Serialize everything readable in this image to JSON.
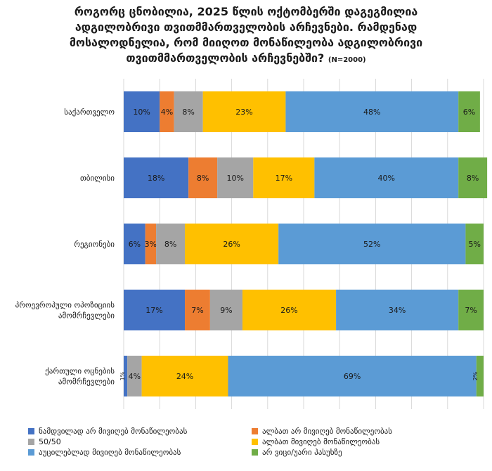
{
  "chart_data": {
    "type": "bar",
    "orientation": "horizontal",
    "stacked": true,
    "title_lines": [
      "როგორც ცნობილია, 2025 წლის ოქტომბერში დაგეგმილია",
      "ადგილობრივი თვითმმართველობის არჩევნები. რამდენად",
      "მოსალოდნელია, რომ მიიღოთ მონაწილეობა ადგილობრივი",
      "თვითმმართველობის არჩევნებში?"
    ],
    "title_note": "(N=2000)",
    "categories": [
      "საქართველო",
      "თბილისი",
      "რეგიონები",
      "პროევროპული ოპოზიციის ამომრჩევლები",
      "ქართული ოცნების ამომრჩევლები"
    ],
    "series": [
      {
        "name": "ნამდვილად არ მივიღებ მონაწილეობას",
        "color": "#4472C4",
        "values": [
          10,
          18,
          6,
          17,
          1
        ]
      },
      {
        "name": "ალბათ არ მივიღებ მონაწილეობას",
        "color": "#ED7D31",
        "values": [
          4,
          8,
          3,
          7,
          0
        ]
      },
      {
        "name": "50/50",
        "color": "#A5A5A5",
        "values": [
          8,
          10,
          8,
          9,
          4
        ]
      },
      {
        "name": "ალბათ მივიღებ მონაწილეობას",
        "color": "#FFC000",
        "values": [
          23,
          17,
          26,
          26,
          24
        ]
      },
      {
        "name": "აუცილებლად მივიღებ მონაწილეობას",
        "color": "#5B9BD5",
        "values": [
          48,
          40,
          52,
          34,
          69
        ]
      },
      {
        "name": "არ ვიცი/უარი პასუხზე",
        "color": "#70AD47",
        "values": [
          6,
          8,
          5,
          7,
          2
        ]
      }
    ],
    "value_labels": [
      [
        "10%",
        "4%",
        "8%",
        "23%",
        "48%",
        "6%"
      ],
      [
        "18%",
        "8%",
        "10%",
        "17%",
        "40%",
        "8%"
      ],
      [
        "6%",
        "3%",
        "8%",
        "26%",
        "52%",
        "5%"
      ],
      [
        "17%",
        "7%",
        "9%",
        "26%",
        "34%",
        "7%"
      ],
      [
        "1%",
        "0%",
        "4%",
        "24%",
        "69%",
        "2%"
      ]
    ],
    "xlim": [
      0,
      100
    ],
    "grid": true,
    "legend_position": "bottom"
  }
}
